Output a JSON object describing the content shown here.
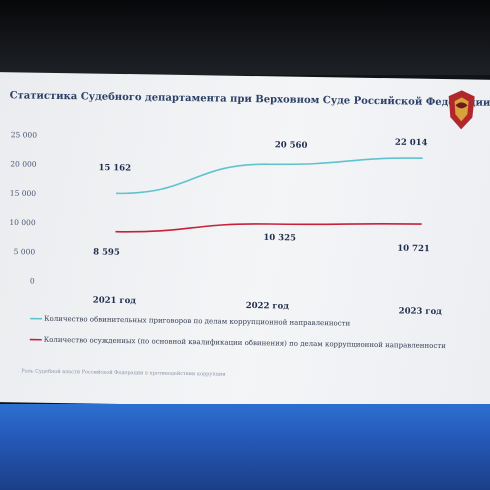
{
  "page": {
    "title": "Статистика Судебного департамента при Верховном Суде Российской Федерации",
    "footnote": "Роль Судебной власти Российской Федерации в противодействии коррупции"
  },
  "chart_data": {
    "type": "line",
    "title": "Статистика Судебного департамента при Верховном Суде Российской Федерации",
    "categories": [
      "2021 год",
      "2022 год",
      "2023 год"
    ],
    "yticks": [
      "25 000",
      "20 000",
      "15 000",
      "10 000",
      "5 000",
      "0"
    ],
    "ylim": [
      0,
      25000
    ],
    "grid": false,
    "legend_position": "bottom-left",
    "series": [
      {
        "name": "Количество обвинительных приговоров по делам коррупционной направленности",
        "values": [
          15162,
          20560,
          22014
        ],
        "labels": [
          "15 162",
          "20 560",
          "22 014"
        ],
        "color": "#5fc3cf"
      },
      {
        "name": "Количество осужденных (по основной квалификации обвинения) по делам коррупционной направленности",
        "values": [
          8595,
          10325,
          10721
        ],
        "labels": [
          "8 595",
          "10 325",
          "10 721"
        ],
        "color": "#c8203a"
      }
    ]
  }
}
